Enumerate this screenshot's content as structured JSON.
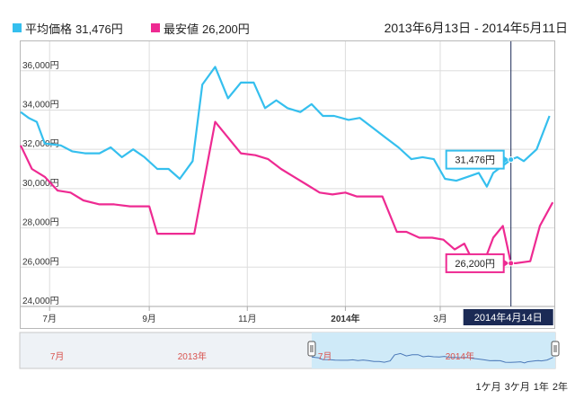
{
  "legend": {
    "avg_label": "平均価格",
    "avg_value": "31,476円",
    "min_label": "最安値",
    "min_value": "26,200円"
  },
  "date_range": "2013年6月13日 - 2014年5月11日",
  "colors": {
    "avg": "#35bfee",
    "min": "#ee2a92",
    "axis": "#aaaaaa",
    "grid": "#dddddd",
    "crosshair": "#1b2a55",
    "navigator_fill": "#cfeaf8"
  },
  "chart_data": {
    "type": "line",
    "ylim": [
      24000,
      37500
    ],
    "yticks": [
      24000,
      26000,
      28000,
      30000,
      32000,
      34000,
      36000
    ],
    "ytick_labels": [
      "24,000円",
      "26,000円",
      "28,000円",
      "30,000円",
      "32,000円",
      "34,000円",
      "36,000円"
    ],
    "xlim": [
      "2013-06-13",
      "2014-05-11"
    ],
    "xticks": [
      {
        "date": "2013-07-01",
        "label": "7月",
        "bold": false
      },
      {
        "date": "2013-09-01",
        "label": "9月",
        "bold": false
      },
      {
        "date": "2013-11-01",
        "label": "11月",
        "bold": false
      },
      {
        "date": "2014-01-01",
        "label": "2014年",
        "bold": true
      },
      {
        "date": "2014-03-01",
        "label": "3月",
        "bold": false
      }
    ],
    "series": [
      {
        "name": "平均価格",
        "color": "#35bfee",
        "points": [
          [
            "2013-06-13",
            33900
          ],
          [
            "2013-06-18",
            33600
          ],
          [
            "2013-06-23",
            33400
          ],
          [
            "2013-06-28",
            32300
          ],
          [
            "2013-07-08",
            32200
          ],
          [
            "2013-07-15",
            31900
          ],
          [
            "2013-07-23",
            31800
          ],
          [
            "2013-08-01",
            31800
          ],
          [
            "2013-08-08",
            32100
          ],
          [
            "2013-08-15",
            31600
          ],
          [
            "2013-08-22",
            32000
          ],
          [
            "2013-08-29",
            31600
          ],
          [
            "2013-09-06",
            31000
          ],
          [
            "2013-09-13",
            31000
          ],
          [
            "2013-09-20",
            30500
          ],
          [
            "2013-09-28",
            31400
          ],
          [
            "2013-10-04",
            35300
          ],
          [
            "2013-10-12",
            36200
          ],
          [
            "2013-10-20",
            34600
          ],
          [
            "2013-10-28",
            35400
          ],
          [
            "2013-11-05",
            35400
          ],
          [
            "2013-11-12",
            34100
          ],
          [
            "2013-11-19",
            34500
          ],
          [
            "2013-11-26",
            34100
          ],
          [
            "2013-12-04",
            33900
          ],
          [
            "2013-12-11",
            34300
          ],
          [
            "2013-12-18",
            33700
          ],
          [
            "2013-12-25",
            33700
          ],
          [
            "2014-01-03",
            33500
          ],
          [
            "2014-01-10",
            33600
          ],
          [
            "2014-01-18",
            33100
          ],
          [
            "2014-01-26",
            32600
          ],
          [
            "2014-02-03",
            32100
          ],
          [
            "2014-02-11",
            31500
          ],
          [
            "2014-02-18",
            31600
          ],
          [
            "2014-02-25",
            31500
          ],
          [
            "2014-03-04",
            30500
          ],
          [
            "2014-03-11",
            30400
          ],
          [
            "2014-03-18",
            30600
          ],
          [
            "2014-03-25",
            30800
          ],
          [
            "2014-03-30",
            30100
          ],
          [
            "2014-04-03",
            30800
          ],
          [
            "2014-04-14",
            31476
          ],
          [
            "2014-04-18",
            31600
          ],
          [
            "2014-04-22",
            31400
          ],
          [
            "2014-04-30",
            32000
          ],
          [
            "2014-05-08",
            33700
          ]
        ]
      },
      {
        "name": "最安値",
        "color": "#ee2a92",
        "points": [
          [
            "2013-06-13",
            32200
          ],
          [
            "2013-06-20",
            31000
          ],
          [
            "2013-06-28",
            30600
          ],
          [
            "2013-07-06",
            29900
          ],
          [
            "2013-07-14",
            29800
          ],
          [
            "2013-07-22",
            29400
          ],
          [
            "2013-08-01",
            29200
          ],
          [
            "2013-08-10",
            29200
          ],
          [
            "2013-08-20",
            29100
          ],
          [
            "2013-09-01",
            29100
          ],
          [
            "2013-09-06",
            27700
          ],
          [
            "2013-09-14",
            27700
          ],
          [
            "2013-09-22",
            27700
          ],
          [
            "2013-09-29",
            27700
          ],
          [
            "2013-10-12",
            33400
          ],
          [
            "2013-10-20",
            32600
          ],
          [
            "2013-10-28",
            31800
          ],
          [
            "2013-11-06",
            31700
          ],
          [
            "2013-11-14",
            31500
          ],
          [
            "2013-11-22",
            31000
          ],
          [
            "2013-11-30",
            30600
          ],
          [
            "2013-12-08",
            30200
          ],
          [
            "2013-12-16",
            29800
          ],
          [
            "2013-12-24",
            29700
          ],
          [
            "2014-01-01",
            29800
          ],
          [
            "2014-01-08",
            29600
          ],
          [
            "2014-01-16",
            29600
          ],
          [
            "2014-01-24",
            29600
          ],
          [
            "2014-02-02",
            27800
          ],
          [
            "2014-02-08",
            27800
          ],
          [
            "2014-02-16",
            27500
          ],
          [
            "2014-02-24",
            27500
          ],
          [
            "2014-03-03",
            27400
          ],
          [
            "2014-03-10",
            26900
          ],
          [
            "2014-03-16",
            27200
          ],
          [
            "2014-03-22",
            26200
          ],
          [
            "2014-03-28",
            26200
          ],
          [
            "2014-04-03",
            27500
          ],
          [
            "2014-04-09",
            28100
          ],
          [
            "2014-04-14",
            26200
          ],
          [
            "2014-04-17",
            26200
          ],
          [
            "2014-04-26",
            26300
          ],
          [
            "2014-05-02",
            28100
          ],
          [
            "2014-05-10",
            29300
          ]
        ]
      }
    ],
    "crosshair": {
      "date": "2014-04-14",
      "label": "2014年4月14日"
    },
    "tooltips": [
      {
        "series": "平均価格",
        "date": "2014-04-14",
        "value": 31476,
        "label": "31,476円"
      },
      {
        "series": "最安値",
        "date": "2014-04-14",
        "value": 26200,
        "label": "26,200円"
      }
    ],
    "navigator": {
      "labels": [
        "7月",
        "2013年",
        "7月",
        "2014年"
      ],
      "selected_range": [
        "2013-06-13",
        "2014-05-11"
      ]
    }
  },
  "range_buttons": [
    "1ケ月",
    "3ケ月",
    "1年",
    "2年"
  ]
}
